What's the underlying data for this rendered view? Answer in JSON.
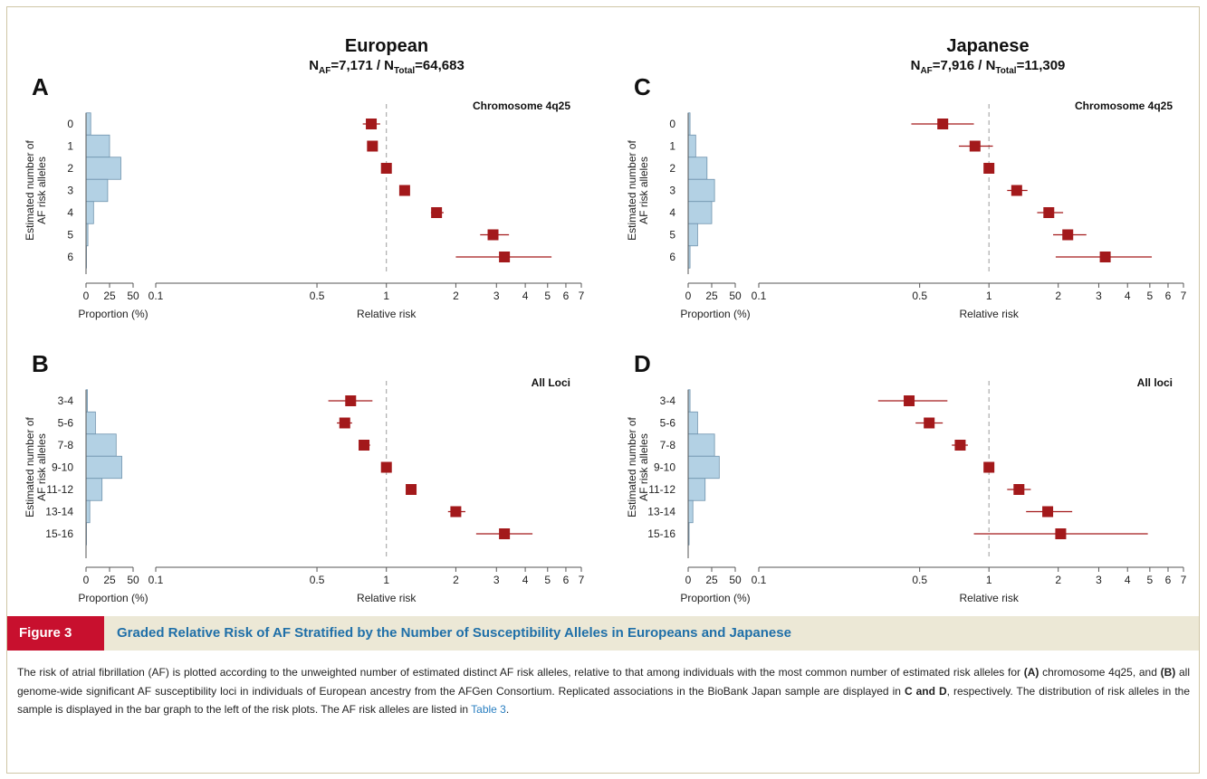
{
  "headers": [
    {
      "title": "European",
      "sub_prefix": "N",
      "sub_af": "AF",
      "n_af": "=7,171 / N",
      "sub_total": "Total",
      "n_total": "=64,683"
    },
    {
      "title": "Japanese",
      "sub_prefix": "N",
      "sub_af": "AF",
      "n_af": "=7,916 / N",
      "sub_total": "Total",
      "n_total": "=11,309"
    }
  ],
  "figure": {
    "label": "Figure 3",
    "title": "Graded Relative Risk of AF Stratified by the Number of Susceptibility Alleles in Europeans and Japanese"
  },
  "caption": {
    "p1": "The risk of atrial fibrillation (AF) is plotted according to the unweighted number of estimated distinct AF risk alleles, relative to that among individuals with the most common number of estimated risk alleles for ",
    "b1": "(A)",
    "p2": " chromosome 4q25, and ",
    "b2": "(B)",
    "p3": " all genome-wide significant AF susceptibility loci in individuals of European ancestry from the AFGen Consortium. Replicated associations in the BioBank Japan sample are displayed in ",
    "b3": "C and D",
    "p4": ", respectively. The distribution of risk alleles in the sample is displayed in the bar graph to the left of the risk plots. The AF risk alleles are listed in ",
    "link": "Table 3",
    "p5": "."
  },
  "colors": {
    "bar_fill": "#b3d1e4",
    "bar_stroke": "#6f93ad",
    "marker": "#a3191b",
    "reference_line": "#9a9a9a",
    "accent": "#c8102e",
    "title_blue": "#1f6fa8"
  },
  "chart_data": [
    {
      "panel": "A",
      "type": "scatter",
      "annotation": "Chromosome 4q25",
      "ylabel": "Estimated number of AF risk alleles",
      "categories": [
        "0",
        "1",
        "2",
        "3",
        "4",
        "5",
        "6"
      ],
      "proportion_percent": [
        5,
        25,
        37,
        23,
        8,
        2,
        0.5
      ],
      "relative_risk": [
        0.86,
        0.87,
        1.0,
        1.2,
        1.65,
        2.9,
        3.25
      ],
      "ci_low": [
        0.79,
        0.83,
        1.0,
        1.15,
        1.56,
        2.55,
        2.0
      ],
      "ci_high": [
        0.94,
        0.91,
        1.0,
        1.25,
        1.77,
        3.4,
        5.2
      ],
      "xlabel_proportion": "Proportion (%)",
      "proportion_ticks": [
        "0",
        "25",
        "50"
      ],
      "xlabel_rr": "Relative risk",
      "rr_ticks": [
        "0.1",
        "0.5",
        "1",
        "2",
        "3",
        "4",
        "5",
        "6",
        "7"
      ],
      "rr_scale": "log",
      "rr_range": [
        0.1,
        7
      ],
      "reference": 1
    },
    {
      "panel": "B",
      "type": "scatter",
      "annotation": "All Loci",
      "ylabel": "Estimated number of AF risk alleles",
      "categories": [
        "3-4",
        "5-6",
        "7-8",
        "9-10",
        "11-12",
        "13-14",
        "15-16"
      ],
      "proportion_percent": [
        1.5,
        10,
        32,
        38,
        17,
        4,
        0.5
      ],
      "relative_risk": [
        0.7,
        0.66,
        0.8,
        1.0,
        1.28,
        2.0,
        3.25
      ],
      "ci_low": [
        0.56,
        0.61,
        0.76,
        1.0,
        1.22,
        1.85,
        2.45
      ],
      "ci_high": [
        0.87,
        0.71,
        0.85,
        1.0,
        1.34,
        2.2,
        4.3
      ],
      "xlabel_proportion": "Proportion (%)",
      "proportion_ticks": [
        "0",
        "25",
        "50"
      ],
      "xlabel_rr": "Relative risk",
      "rr_ticks": [
        "0.1",
        "0.5",
        "1",
        "2",
        "3",
        "4",
        "5",
        "6",
        "7"
      ],
      "rr_scale": "log",
      "rr_range": [
        0.1,
        7
      ],
      "reference": 1
    },
    {
      "panel": "C",
      "type": "scatter",
      "annotation": "Chromosome 4q25",
      "ylabel": "Estimated number of AF risk alleles",
      "categories": [
        "0",
        "1",
        "2",
        "3",
        "4",
        "5",
        "6"
      ],
      "proportion_percent": [
        2,
        8,
        20,
        28,
        25,
        10,
        2
      ],
      "relative_risk": [
        0.63,
        0.87,
        1.0,
        1.32,
        1.82,
        2.2,
        3.2
      ],
      "ci_low": [
        0.46,
        0.74,
        1.0,
        1.2,
        1.62,
        1.9,
        1.95
      ],
      "ci_high": [
        0.86,
        1.04,
        1.0,
        1.47,
        2.1,
        2.65,
        5.1
      ],
      "xlabel_proportion": "Proportion (%)",
      "proportion_ticks": [
        "0",
        "25",
        "50"
      ],
      "xlabel_rr": "Relative risk",
      "rr_ticks": [
        "0.1",
        "0.5",
        "1",
        "2",
        "3",
        "4",
        "5",
        "6",
        "7"
      ],
      "rr_scale": "log",
      "rr_range": [
        0.1,
        7
      ],
      "reference": 1
    },
    {
      "panel": "D",
      "type": "scatter",
      "annotation": "All loci",
      "ylabel": "Estimated number of AF risk alleles",
      "categories": [
        "3-4",
        "5-6",
        "7-8",
        "9-10",
        "11-12",
        "13-14",
        "15-16"
      ],
      "proportion_percent": [
        2,
        10,
        28,
        33,
        18,
        5,
        1
      ],
      "relative_risk": [
        0.45,
        0.55,
        0.75,
        1.0,
        1.35,
        1.8,
        2.05
      ],
      "ci_low": [
        0.33,
        0.48,
        0.69,
        1.0,
        1.2,
        1.45,
        0.86
      ],
      "ci_high": [
        0.66,
        0.63,
        0.81,
        1.0,
        1.52,
        2.3,
        4.9
      ],
      "xlabel_proportion": "Proportion (%)",
      "proportion_ticks": [
        "0",
        "25",
        "50"
      ],
      "xlabel_rr": "Relative risk",
      "rr_ticks": [
        "0.1",
        "0.5",
        "1",
        "2",
        "3",
        "4",
        "5",
        "6",
        "7"
      ],
      "rr_scale": "log",
      "rr_range": [
        0.1,
        7
      ],
      "reference": 1
    }
  ]
}
